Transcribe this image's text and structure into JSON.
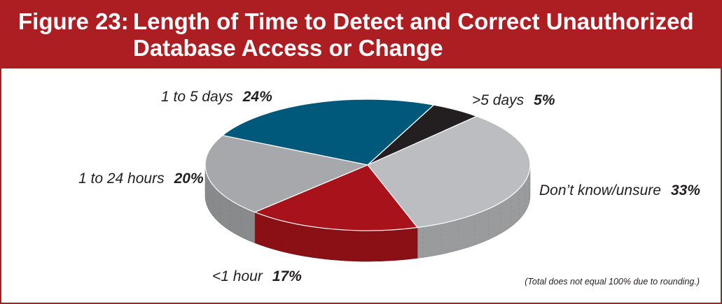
{
  "figure": {
    "number": "Figure 23:",
    "title_lines": [
      "Length of Time to Detect and Correct Unauthorized",
      "Database Access or Change"
    ]
  },
  "footnote": "(Total does not equal 100% due to rounding.)",
  "colors": {
    "header": "#ad1e23",
    "header_text": "#ffffff"
  },
  "chart_data": {
    "type": "pie",
    "style": "3d",
    "title": "Length of Time to Detect and Correct Unauthorized Database Access or Change",
    "slices": [
      {
        "label": ">5  days",
        "value": 5,
        "pct_label": "5%",
        "color": "#231f20"
      },
      {
        "label": "Don’t know/unsure",
        "value": 33,
        "pct_label": "33%",
        "color": "#bcbdc0"
      },
      {
        "label": "<1 hour",
        "value": 17,
        "pct_label": "17%",
        "color": "#a8131b"
      },
      {
        "label": "1 to 24 hours",
        "value": 20,
        "pct_label": "20%",
        "color": "#a6a8ab"
      },
      {
        "label": "1 to 5 days",
        "value": 24,
        "pct_label": "24%",
        "color": "#00587a"
      }
    ]
  }
}
